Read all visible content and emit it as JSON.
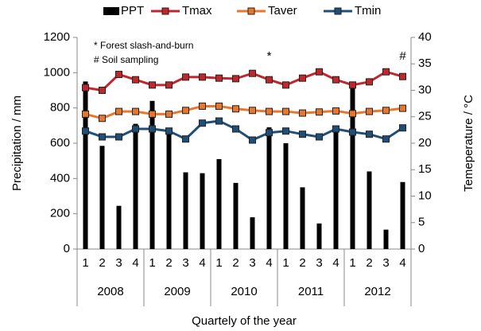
{
  "chart_data": {
    "type": "bar",
    "y_label": "Precipitation / mm",
    "y2_label": "Temeperature / °C",
    "x_label": "Quartely of the year",
    "categories": [
      "1",
      "2",
      "3",
      "4",
      "1",
      "2",
      "3",
      "4",
      "1",
      "2",
      "3",
      "4",
      "1",
      "2",
      "3",
      "4",
      "1",
      "2",
      "3",
      "4"
    ],
    "groups": [
      {
        "label": "2008",
        "span": 4
      },
      {
        "label": "2009",
        "span": 4
      },
      {
        "label": "2010",
        "span": 4
      },
      {
        "label": "2011",
        "span": 4
      },
      {
        "label": "2012",
        "span": 4
      }
    ],
    "series": [
      {
        "name": "PPT",
        "type": "bar",
        "color": "#000000",
        "values": [
          950,
          585,
          245,
          710,
          840,
          680,
          435,
          430,
          510,
          375,
          180,
          690,
          600,
          350,
          145,
          690,
          940,
          440,
          110,
          380
        ]
      },
      {
        "name": "Tmax",
        "type": "line",
        "axis": "y2",
        "color": "#c0272d",
        "values": [
          30.5,
          30,
          33,
          32,
          31,
          31,
          32.5,
          32.5,
          32.3,
          32.2,
          33.2,
          32,
          31,
          32.3,
          33.5,
          32,
          31,
          31.6,
          33.5,
          32.6
        ]
      },
      {
        "name": "Taver",
        "type": "line",
        "axis": "y2",
        "color": "#e8772e",
        "values": [
          25.5,
          24.7,
          26,
          26,
          25.5,
          25.5,
          26.2,
          27,
          27,
          26.5,
          26.2,
          26,
          26,
          25.7,
          25.9,
          26.1,
          25.6,
          26,
          26.2,
          26.6
        ]
      },
      {
        "name": "Tmin",
        "type": "line",
        "axis": "y2",
        "color": "#1f4e79",
        "values": [
          22.3,
          21.2,
          21.2,
          22.7,
          22.7,
          22.3,
          20.8,
          23.8,
          24.2,
          22.7,
          20.6,
          22,
          22.3,
          21.7,
          21.2,
          22.7,
          22.1,
          21.7,
          20.8,
          22.9
        ]
      }
    ],
    "notes": [
      "* Forest slash-and-burn",
      "#  Soil sampling"
    ],
    "annotations": [
      {
        "text": "*",
        "index": 11
      },
      {
        "text": "#",
        "index": 19
      }
    ],
    "ylim": [
      0,
      1200
    ],
    "yticks": [
      0,
      200,
      400,
      600,
      800,
      1000,
      1200
    ],
    "y2lim": [
      0,
      40
    ],
    "y2ticks": [
      0,
      5,
      10,
      15,
      20,
      25,
      30,
      35,
      40
    ],
    "legend": "top",
    "grid": false
  }
}
